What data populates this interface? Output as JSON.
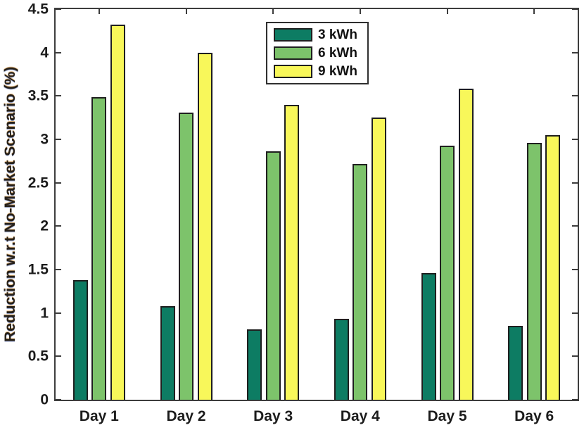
{
  "figure": {
    "background_color": "#ffffff",
    "axis_color": "#3d3d3d",
    "bar_edge_color": "#1f1f1f",
    "tick_label_color": "#1c1c1c"
  },
  "chart_data": {
    "type": "bar",
    "title": "",
    "xlabel": "",
    "ylabel": "Reduction w.r.t No-Market Scenario (%)",
    "categories": [
      "Day 1",
      "Day 2",
      "Day 3",
      "Day 4",
      "Day 5",
      "Day 6"
    ],
    "series": [
      {
        "name": "3 kWh",
        "color": "#0d7c63",
        "values": [
          1.38,
          1.08,
          0.81,
          0.93,
          1.46,
          0.85
        ]
      },
      {
        "name": "6 kWh",
        "color": "#7dc36b",
        "values": [
          3.49,
          3.31,
          2.86,
          2.72,
          2.93,
          2.96
        ]
      },
      {
        "name": "9 kWh",
        "color": "#f8f75a",
        "values": [
          4.32,
          4.0,
          3.4,
          3.25,
          3.58,
          3.05
        ]
      }
    ],
    "ylim": [
      0,
      4.5
    ],
    "ytick_values": [
      0,
      0.5,
      1,
      1.5,
      2,
      2.5,
      3,
      3.5,
      4,
      4.5
    ],
    "ytick_labels": [
      "0",
      "0.5",
      "1",
      "1.5",
      "2",
      "2.5",
      "3",
      "3.5",
      "4",
      "4.5"
    ],
    "grid": false,
    "legend_position": "upper-center-left",
    "legend_entries": [
      "3 kWh",
      "6 kWh",
      "9 kWh"
    ]
  }
}
